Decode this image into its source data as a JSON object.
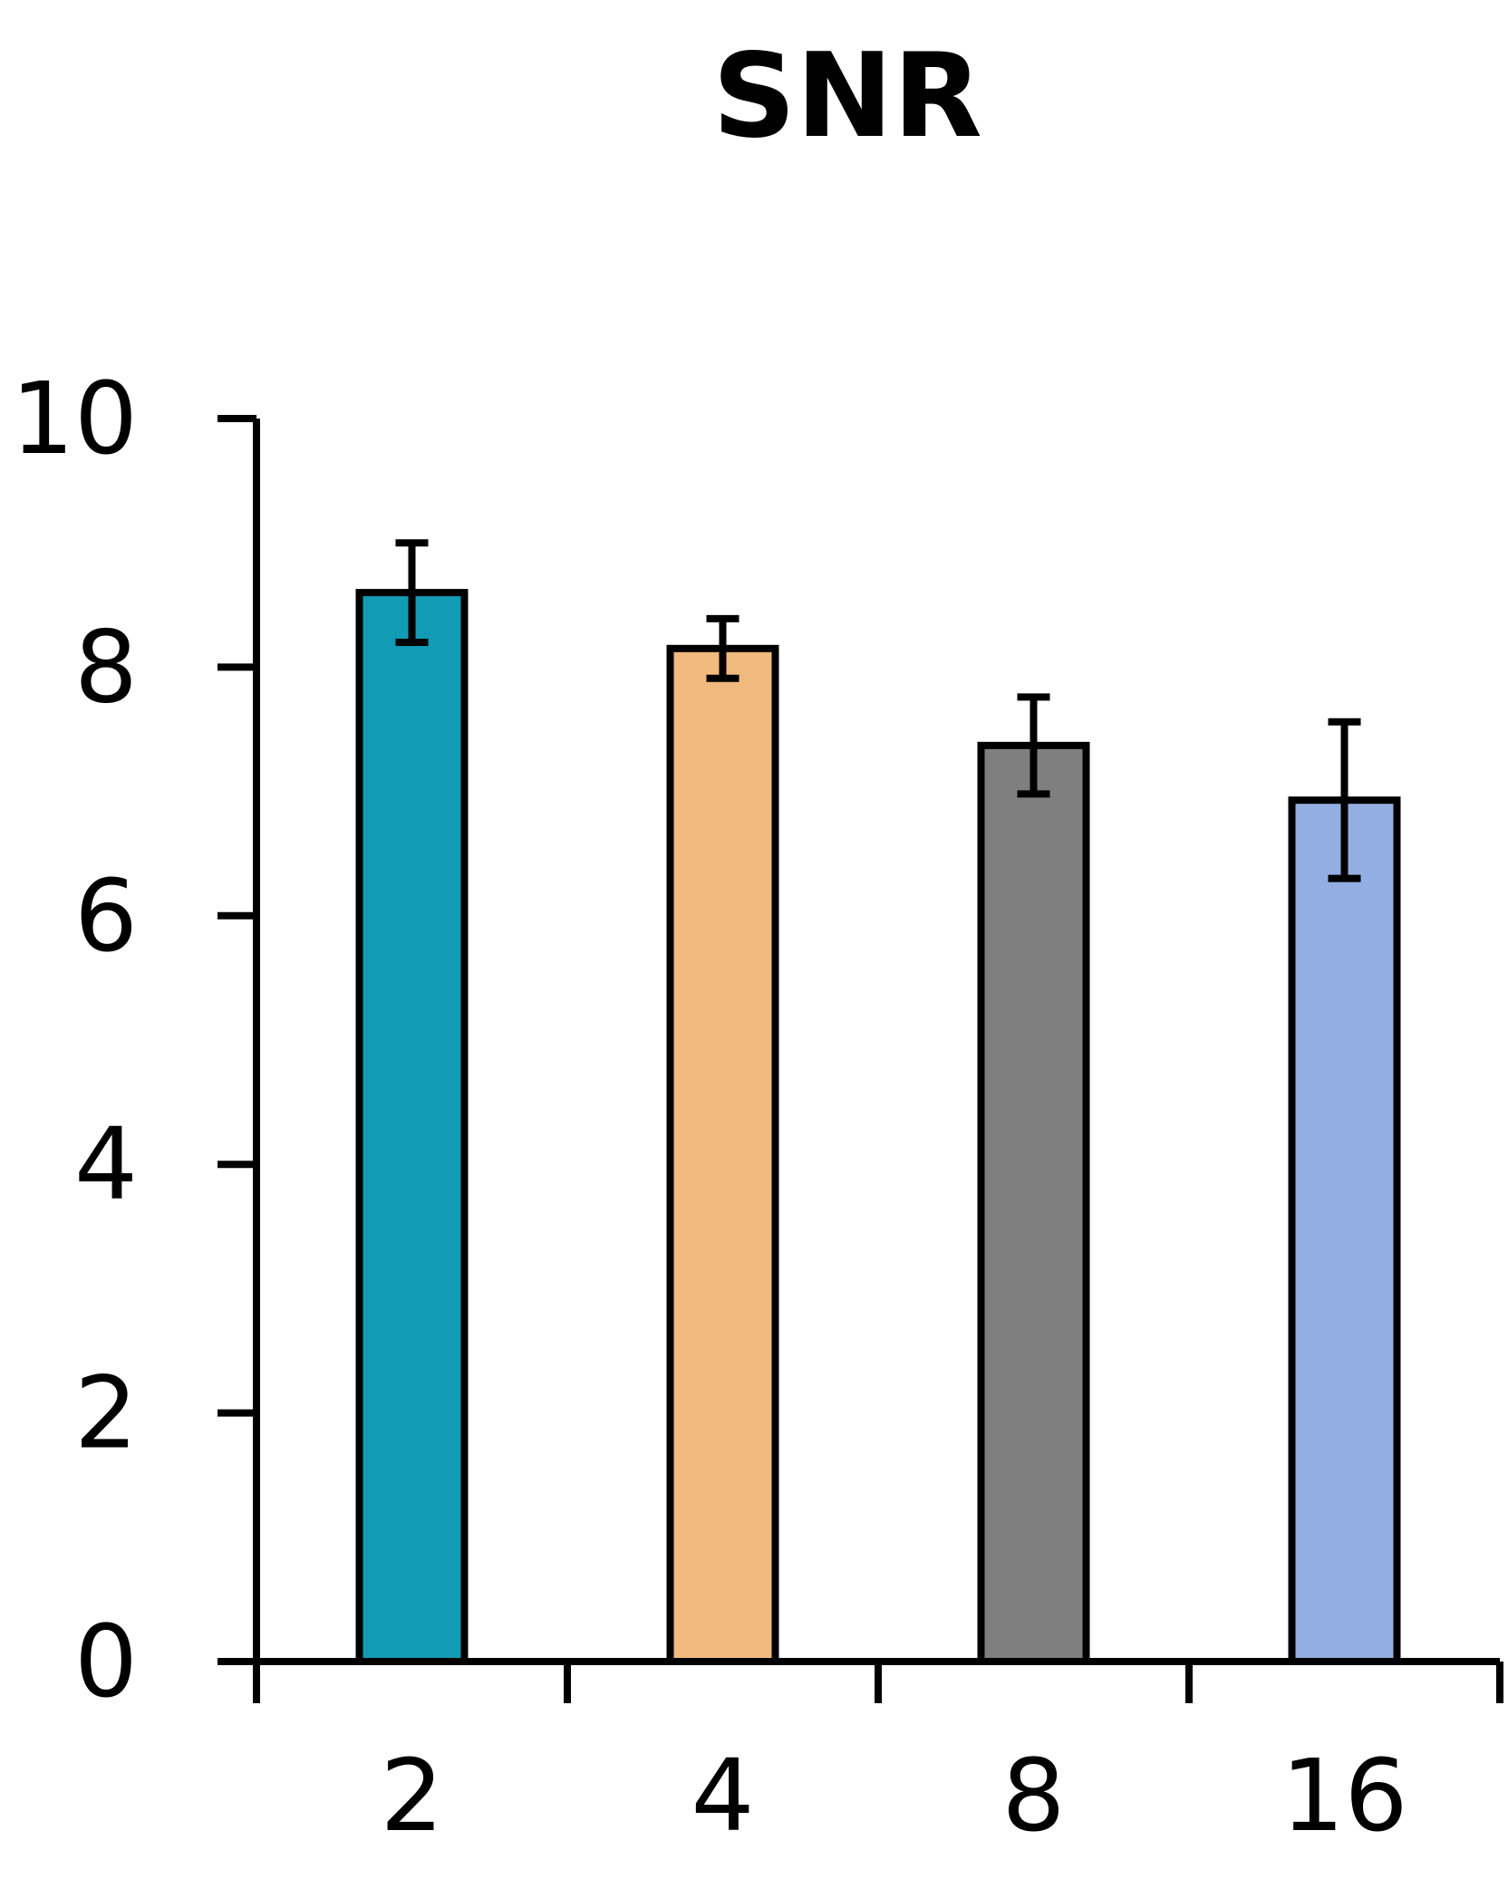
{
  "chart_data": {
    "type": "bar",
    "title": "SNR",
    "xlabel": "",
    "ylabel": "",
    "categories": [
      "2",
      "4",
      "8",
      "16"
    ],
    "values": [
      8.6,
      8.15,
      7.37,
      6.93
    ],
    "errors": [
      0.4,
      0.24,
      0.39,
      0.63
    ],
    "colors": [
      "#129bb5",
      "#f0b97e",
      "#7f7f7f",
      "#93aee2"
    ],
    "ylim": [
      0,
      10
    ],
    "yticks": [
      "0",
      "2",
      "4",
      "6",
      "8",
      "10"
    ],
    "grid": false,
    "legend": "none"
  }
}
